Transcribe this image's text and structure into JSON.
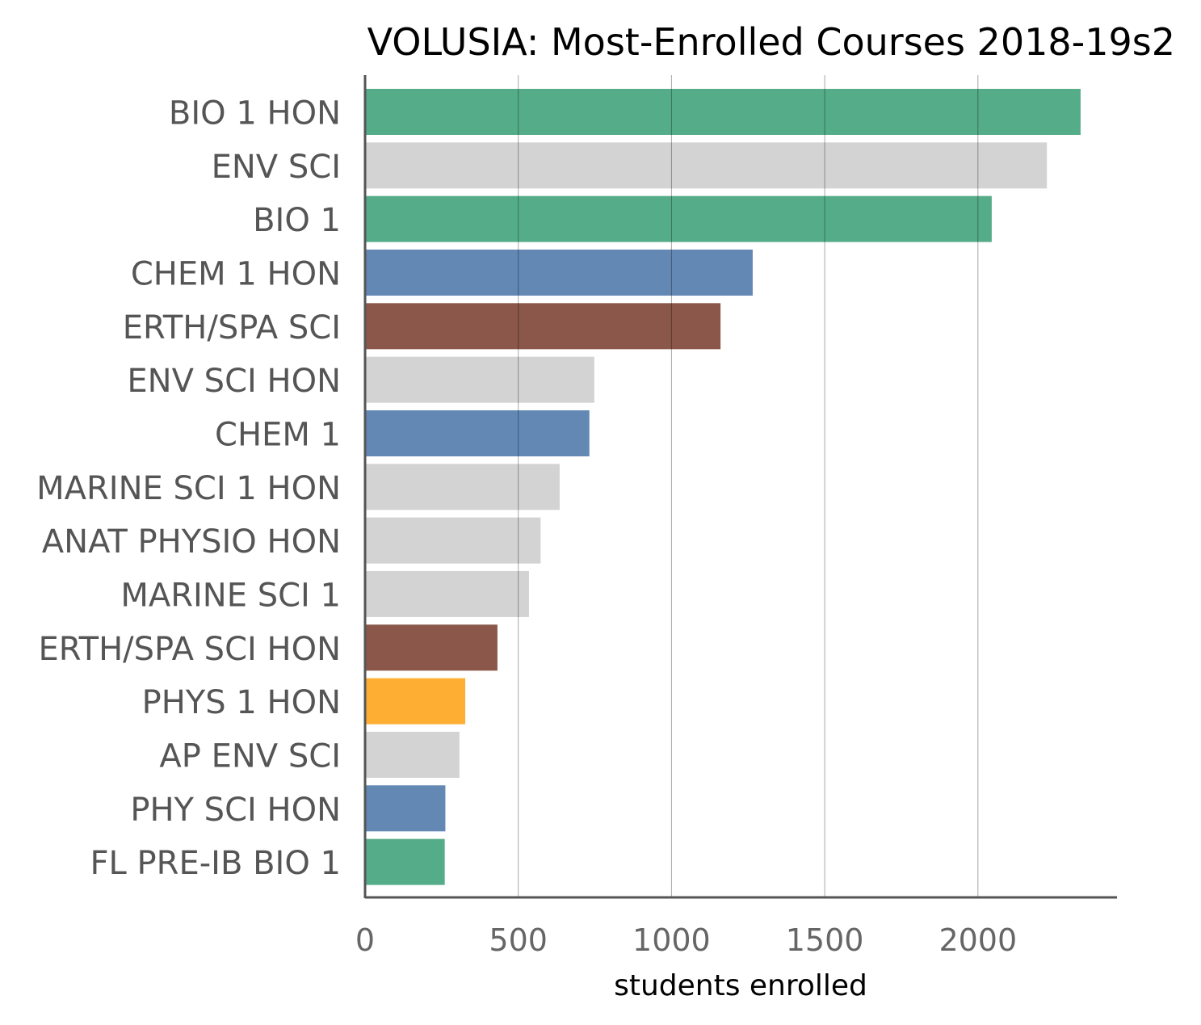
{
  "chart_data": {
    "type": "bar",
    "orientation": "horizontal",
    "title": "VOLUSIA: Most-Enrolled Courses 2018-19s2",
    "xlabel": "students enrolled",
    "ylabel": "",
    "xlim": [
      0,
      2450
    ],
    "xticks": [
      0,
      500,
      1000,
      1500,
      2000
    ],
    "xtick_labels": [
      "0",
      "500",
      "1000",
      "1500",
      "2000"
    ],
    "grid": "vertical",
    "categories": [
      "BIO 1 HON",
      "ENV SCI",
      "BIO 1",
      "CHEM 1 HON",
      "ERTH/SPA SCI",
      "ENV SCI HON",
      "CHEM 1",
      "MARINE SCI 1 HON",
      "ANAT PHYSIO HON",
      "MARINE SCI 1",
      "ERTH/SPA SCI HON",
      "PHYS 1 HON",
      "AP ENV SCI",
      "PHY SCI HON",
      "FL PRE-IB BIO 1"
    ],
    "values": [
      2335,
      2225,
      2045,
      1265,
      1160,
      748,
      732,
      635,
      573,
      535,
      432,
      327,
      308,
      262,
      260
    ],
    "colors": [
      "#55ac88",
      "#d3d3d3",
      "#55ac88",
      "#6388b4",
      "#8a574a",
      "#d3d3d3",
      "#6388b4",
      "#d3d3d3",
      "#d3d3d3",
      "#d3d3d3",
      "#8a574a",
      "#ffae34",
      "#d3d3d3",
      "#6388b4",
      "#55ac88"
    ]
  }
}
